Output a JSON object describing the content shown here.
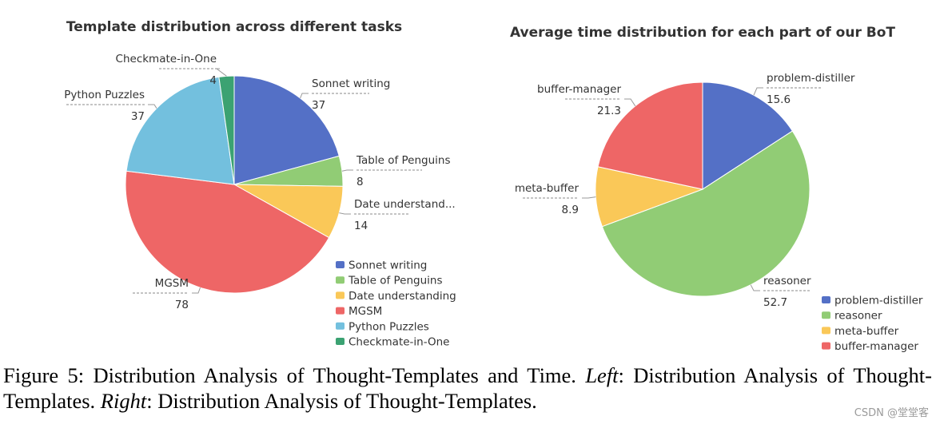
{
  "chart_data": [
    {
      "type": "pie",
      "title": "Template distribution across different tasks",
      "slices": [
        {
          "label": "Sonnet writing",
          "value": 37,
          "display_label": "Sonnet writing",
          "color": "#5470c6"
        },
        {
          "label": "Table of Penguins",
          "value": 8,
          "display_label": "Table of Penguins",
          "color": "#91cc75"
        },
        {
          "label": "Date understanding",
          "value": 14,
          "display_label": "Date understand...",
          "color": "#fac858"
        },
        {
          "label": "MGSM",
          "value": 78,
          "display_label": "MGSM",
          "color": "#ee6666"
        },
        {
          "label": "Python Puzzles",
          "value": 37,
          "display_label": "Python Puzzles",
          "color": "#73c0de"
        },
        {
          "label": "Checkmate-in-One",
          "value": 4,
          "display_label": "Checkmate-in-One",
          "color": "#3ba272"
        }
      ],
      "legend_position": "bottom-right"
    },
    {
      "type": "pie",
      "title": "Average time distribution for each part of our BoT",
      "slices": [
        {
          "label": "problem-distiller",
          "value": 15.6,
          "display_label": "problem-distiller",
          "color": "#5470c6"
        },
        {
          "label": "reasoner",
          "value": 52.7,
          "display_label": "reasoner",
          "color": "#91cc75"
        },
        {
          "label": "meta-buffer",
          "value": 8.9,
          "display_label": "meta-buffer",
          "color": "#fac858"
        },
        {
          "label": "buffer-manager",
          "value": 21.3,
          "display_label": "buffer-manager",
          "color": "#ee6666"
        }
      ],
      "legend_position": "bottom-right"
    }
  ],
  "caption": {
    "prefix": "Figure 5: Distribution Analysis of Thought-Templates and Time. ",
    "left_word": "Left",
    "middle": ": Distribution Analysis of Thought-Templates. ",
    "right_word": "Right",
    "suffix": ": Distribution Analysis of Thought-Templates."
  },
  "watermark": "CSDN @堂堂客"
}
